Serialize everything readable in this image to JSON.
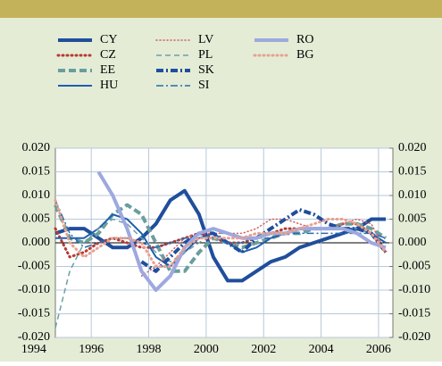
{
  "chart_data": {
    "type": "line",
    "x": [
      1994.75,
      1995.25,
      1995.75,
      1996.25,
      1996.75,
      1997.25,
      1997.75,
      1998.25,
      1998.75,
      1999.25,
      1999.75,
      2000.25,
      2000.75,
      2001.25,
      2001.75,
      2002.25,
      2002.75,
      2003.25,
      2003.75,
      2004.25,
      2004.75,
      2005.25,
      2005.75,
      2006.25
    ],
    "xlim": [
      1994.75,
      2006.5
    ],
    "xticks": [
      1994,
      1996,
      1998,
      2000,
      2002,
      2004,
      2006
    ],
    "ylim": [
      -0.02,
      0.02
    ],
    "yticks": [
      {
        "value": -0.02,
        "label": "-0.020"
      },
      {
        "value": -0.015,
        "label": "-0.015"
      },
      {
        "value": -0.01,
        "label": "-0.010"
      },
      {
        "value": -0.005,
        "label": "-0.005"
      },
      {
        "value": 0,
        "label": "0.000"
      },
      {
        "value": 0.005,
        "label": "0.005"
      },
      {
        "value": 0.01,
        "label": "0.010"
      },
      {
        "value": 0.015,
        "label": "0.015"
      },
      {
        "value": 0.02,
        "label": "0.020"
      }
    ],
    "y2lim": [
      -0.02,
      0.02
    ],
    "y2ticks": [
      {
        "value": -0.02,
        "label": "-0.020"
      },
      {
        "value": -0.015,
        "label": "-0.015"
      },
      {
        "value": -0.01,
        "label": "-0.010"
      },
      {
        "value": -0.005,
        "label": "-0.005"
      },
      {
        "value": 0,
        "label": "0.000"
      },
      {
        "value": 0.005,
        "label": "0.005"
      },
      {
        "value": 0.01,
        "label": "0.010"
      },
      {
        "value": 0.015,
        "label": "0.015"
      },
      {
        "value": 0.02,
        "label": "0.020"
      }
    ],
    "grid": true,
    "series": [
      {
        "name": "CY",
        "color": "#1f4e9c",
        "width": 4,
        "dash": "none",
        "values": [
          0.002,
          0.003,
          0.003,
          0.001,
          -0.001,
          -0.001,
          0.001,
          0.004,
          0.009,
          0.011,
          0.006,
          -0.003,
          -0.008,
          -0.008,
          -0.006,
          -0.004,
          -0.003,
          -0.001,
          0,
          0.001,
          0.002,
          0.003,
          0.005,
          0.005
        ]
      },
      {
        "name": "CZ",
        "color": "#b83a2e",
        "width": 3,
        "dash": "1 4",
        "values": [
          0.003,
          -0.003,
          -0.002,
          0,
          0.001,
          0,
          -0.001,
          -0.001,
          0,
          0.001,
          0.002,
          0.001,
          0,
          0,
          0.001,
          0.002,
          0.003,
          0.003,
          0.003,
          0.003,
          0.004,
          0.004,
          0.002,
          -0.002
        ]
      },
      {
        "name": "EE",
        "color": "#6a9e9c",
        "width": 4,
        "dash": "8 4",
        "values": [
          0.008,
          0.001,
          0,
          0.002,
          0.006,
          0.008,
          0.006,
          0,
          -0.006,
          -0.006,
          -0.002,
          0.001,
          0,
          -0.001,
          0,
          0.001,
          0.002,
          0.002,
          0.003,
          0.003,
          0.004,
          0.004,
          0.003,
          0.001
        ]
      },
      {
        "name": "HU",
        "color": "#1f5fad",
        "width": 2,
        "dash": "none",
        "values": [
          0.001,
          0.001,
          0.001,
          0.003,
          0.006,
          0.005,
          0.002,
          -0.003,
          -0.005,
          -0.002,
          0.001,
          0.002,
          0,
          -0.002,
          -0.001,
          0.001,
          0.002,
          0.003,
          0.003,
          0.003,
          0.003,
          0.003,
          0.002,
          0
        ]
      },
      {
        "name": "LV",
        "color": "#d06060",
        "width": 1.5,
        "dash": "1 3",
        "values": [
          null,
          null,
          null,
          null,
          null,
          null,
          -0.007,
          -0.005,
          -0.002,
          0.001,
          0.002,
          0.002,
          0.002,
          0.002,
          0.003,
          0.005,
          0.005,
          0.004,
          0.003,
          0.003,
          0.004,
          0.005,
          0.004,
          -0.002
        ]
      },
      {
        "name": "PL",
        "color": "#6aa0a8",
        "width": 1.5,
        "dash": "6 4",
        "values": [
          -0.018,
          -0.006,
          0,
          0.003,
          0.005,
          0.004,
          0.001,
          -0.002,
          -0.004,
          -0.002,
          0,
          0.002,
          0.002,
          0.001,
          0.001,
          0.002,
          0.002,
          0.003,
          0.003,
          0.003,
          0.003,
          0.003,
          0.002,
          0.001
        ]
      },
      {
        "name": "SK",
        "color": "#1f4e9c",
        "width": 4,
        "dash": "8 3 2 3",
        "values": [
          null,
          null,
          null,
          null,
          null,
          null,
          -0.004,
          -0.006,
          -0.003,
          0,
          0.002,
          0.002,
          0,
          -0.002,
          0.001,
          0.003,
          0.005,
          0.007,
          0.006,
          0.004,
          0.003,
          0.003,
          0.002,
          -0.002
        ]
      },
      {
        "name": "SI",
        "color": "#2a6ab0",
        "width": 1.5,
        "dash": "8 3 2 3",
        "values": [
          0.009,
          0.002,
          -0.001,
          0,
          0.001,
          0.001,
          0,
          -0.001,
          0,
          0.001,
          0.001,
          0.001,
          0,
          0,
          0.001,
          0.001,
          0.002,
          0.002,
          0.002,
          0.002,
          0.002,
          0.002,
          0.002,
          0.001
        ]
      },
      {
        "name": "RO",
        "color": "#9ea8e0",
        "width": 4,
        "dash": "none",
        "values": [
          null,
          null,
          null,
          0.015,
          0.01,
          0.003,
          -0.006,
          -0.01,
          -0.007,
          -0.001,
          0.002,
          0.003,
          0.002,
          0.001,
          0.001,
          0.002,
          0.002,
          0.003,
          0.003,
          0.003,
          0.003,
          0.002,
          0,
          -0.001
        ]
      },
      {
        "name": "BG",
        "color": "#e8a090",
        "width": 3,
        "dash": "1 4",
        "values": [
          0.009,
          0,
          -0.003,
          -0.001,
          0.001,
          0.001,
          0,
          -0.005,
          -0.005,
          -0.001,
          0.001,
          0.001,
          0.001,
          0.001,
          0.002,
          0.002,
          0.002,
          0.003,
          0.004,
          0.005,
          0.005,
          0.004,
          0.002,
          -0.002
        ]
      }
    ]
  }
}
